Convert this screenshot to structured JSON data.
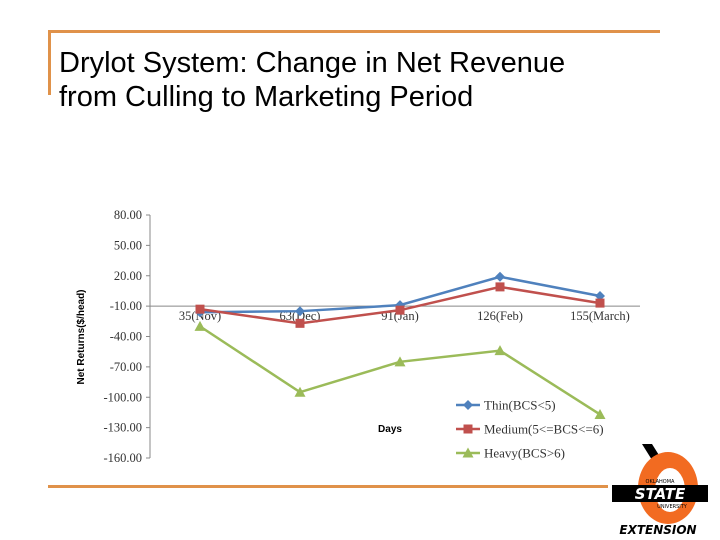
{
  "slide": {
    "title_line1": "Drylot System:  Change in Net Revenue",
    "title_line2": "from Culling to Marketing Period"
  },
  "chart_data": {
    "type": "line",
    "title": "",
    "xlabel": "Days",
    "ylabel": "Net Returns($/head)",
    "categories": [
      "35(Nov)",
      "63(Dec)",
      "91(Jan)",
      "126(Feb)",
      "155(March)"
    ],
    "ylim": [
      -160,
      80
    ],
    "yticks": [
      80,
      50,
      20,
      -10,
      -40,
      -70,
      -100,
      -130,
      -160
    ],
    "ytick_labels": [
      "80.00",
      "50.00",
      "20.00",
      "-10.00",
      "-40.00",
      "-70.00",
      "-100.00",
      "-130.00",
      "-160.00"
    ],
    "grid": false,
    "legend_position": "bottom-right",
    "series": [
      {
        "name": "Thin(BCS<5)",
        "color": "#4f81bd",
        "marker": "diamond",
        "values": [
          -16,
          -15,
          -9,
          19,
          0
        ]
      },
      {
        "name": "Medium(5<=BCS<=6)",
        "color": "#c0504d",
        "marker": "square",
        "values": [
          -13,
          -27,
          -14,
          9,
          -7
        ]
      },
      {
        "name": "Heavy(BCS>6)",
        "color": "#9bbb59",
        "marker": "triangle",
        "values": [
          -30,
          -95,
          -65,
          -54,
          -117
        ]
      }
    ]
  },
  "logo": {
    "colors": {
      "orange": "#f26b21",
      "black": "#000000"
    },
    "icon": "oklahoma-state-extension-logo",
    "text_oklahoma": "OKLAHOMA",
    "text_state": "STATE",
    "text_university": "UNIVERSITY",
    "text_extension": "EXTENSION"
  }
}
